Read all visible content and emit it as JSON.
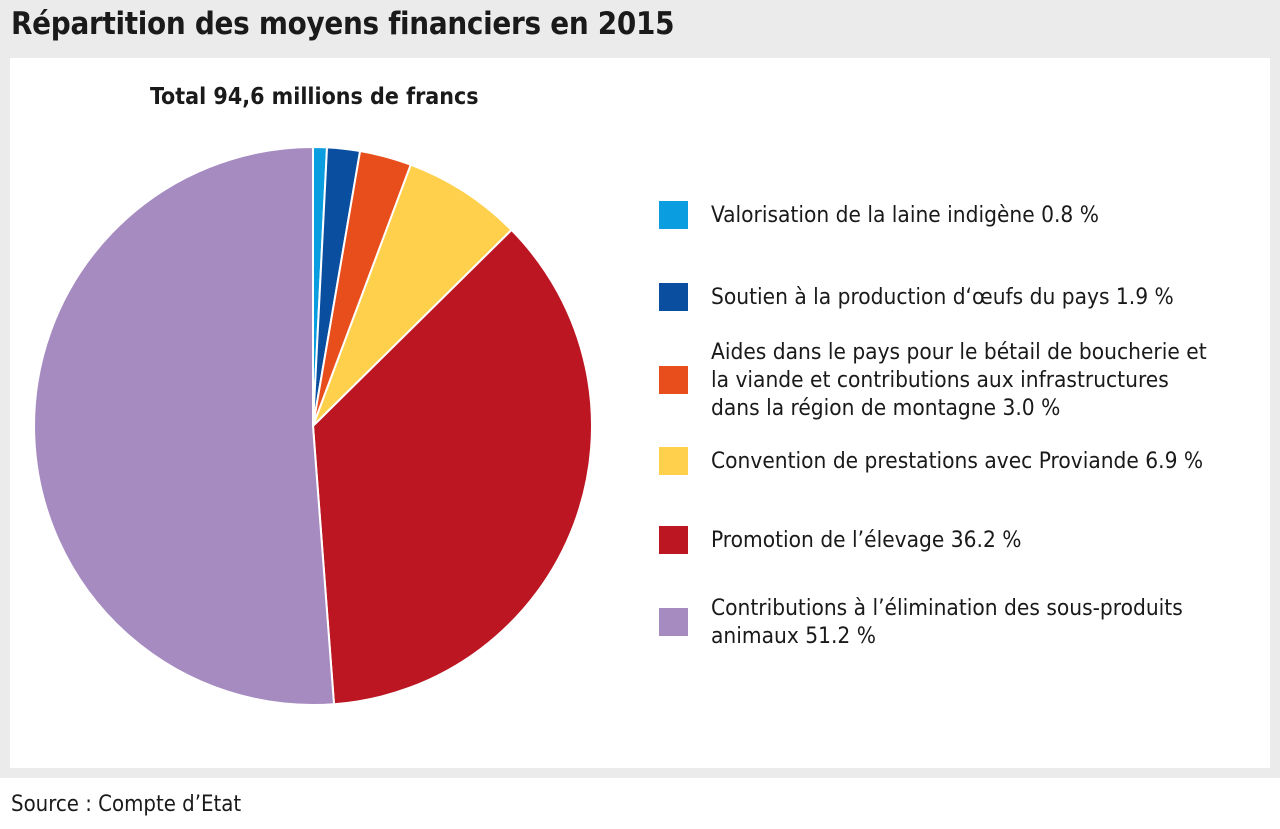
{
  "header": {
    "title": "Répartition des moyens financiers en 2015"
  },
  "footer": {
    "source": "Source : Compte d’Etat"
  },
  "chart_data": {
    "type": "pie",
    "title": "Répartition des moyens financiers en 2015",
    "subtitle": "Total 94,6 millions de francs",
    "legend_position": "right",
    "slices": [
      {
        "label": "Valorisation de la laine indigène 0.8 %",
        "lines": [
          "Valorisation de la laine indigène 0.8 %"
        ],
        "value": 0.8,
        "color": "#0a9ee0"
      },
      {
        "label": "Soutien à la production d‘œufs du pays 1.9 %",
        "lines": [
          "Soutien à la production d‘œufs du pays 1.9 %"
        ],
        "value": 1.9,
        "color": "#0a4ea0"
      },
      {
        "label": "Aides dans le pays pour le bétail de boucherie et la viande et contributions aux infrastructures dans la région de montagne 3.0 %",
        "lines": [
          "Aides dans le pays pour le bétail de boucherie et",
          "la viande et contributions aux infrastructures",
          "dans la région de montagne 3.0 %"
        ],
        "value": 3.0,
        "color": "#e84e1c"
      },
      {
        "label": "Convention de prestations avec Proviande 6.9 %",
        "lines": [
          "Convention de prestations avec Proviande 6.9 %"
        ],
        "value": 6.9,
        "color": "#fed04b"
      },
      {
        "label": "Promotion de l’élevage 36.2 %",
        "lines": [
          "Promotion de l’élevage 36.2 %"
        ],
        "value": 36.2,
        "color": "#bc1622"
      },
      {
        "label": "Contributions à l’élimination des sous-produits animaux 51.2 %",
        "lines": [
          "Contributions à l’élimination des sous-produits",
          "animaux 51.2 %"
        ],
        "value": 51.2,
        "color": "#a68bc1"
      }
    ]
  }
}
